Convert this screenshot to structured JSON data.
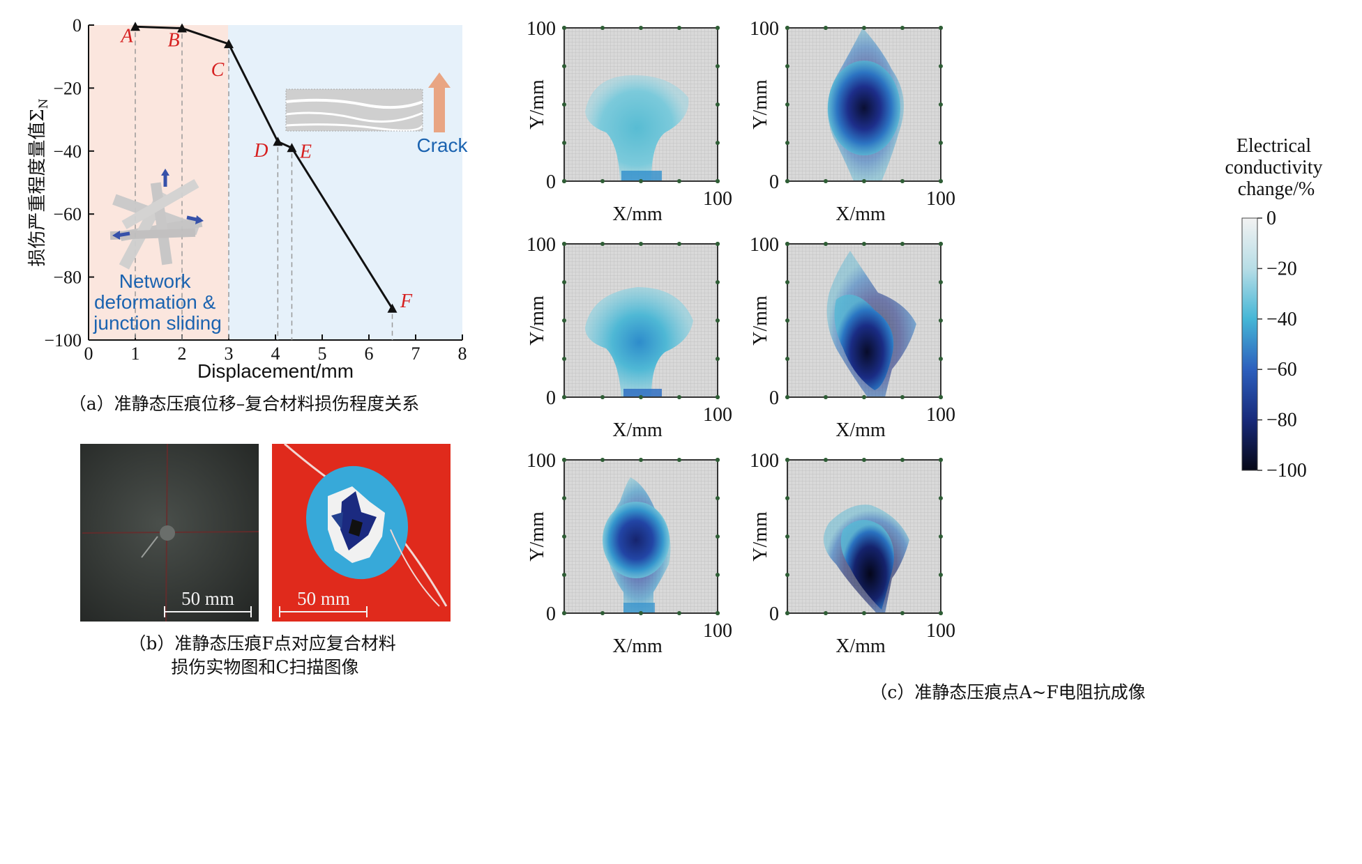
{
  "chart_data": [
    {
      "type": "line",
      "panel_caption": "（a）准静态压痕位移–复合材料损伤程度关系",
      "xlabel": "Displacement/mm",
      "ylabel": "损伤严重程度量值Σ",
      "ylabel_subscript": "N",
      "xlim": [
        0,
        8
      ],
      "ylim": [
        -100,
        0
      ],
      "x_ticks": [
        "0",
        "1",
        "2",
        "3",
        "4",
        "5",
        "6",
        "7",
        "8"
      ],
      "y_ticks": [
        "0",
        "−20",
        "−40",
        "−60",
        "−80",
        "−100"
      ],
      "grid": false,
      "points": [
        {
          "label": "A",
          "x": 1.0,
          "y": -0.5
        },
        {
          "label": "B",
          "x": 2.0,
          "y": -1.0
        },
        {
          "label": "C",
          "x": 3.0,
          "y": -6.0
        },
        {
          "label": "D",
          "x": 4.05,
          "y": -37.0
        },
        {
          "label": "E",
          "x": 4.35,
          "y": -39.0
        },
        {
          "label": "F",
          "x": 6.5,
          "y": -90.0
        }
      ],
      "regions": [
        {
          "from": 0,
          "to": 3,
          "color": "#fbe6de",
          "label_lines": [
            "Network",
            "deformation &",
            "junction sliding"
          ]
        },
        {
          "from": 3,
          "to": 8,
          "color": "#e6f1fa",
          "label_lines": [
            "Crack"
          ]
        }
      ]
    },
    {
      "type": "heatmap",
      "panel_caption": "（c）准静态压痕点A~F电阻抗成像",
      "xlabel": "X/mm",
      "ylabel": "Y/mm",
      "xlim": [
        0,
        100
      ],
      "ylim": [
        0,
        100
      ],
      "axis_ticks": [
        "0",
        "100"
      ],
      "colorbar": {
        "title_lines": [
          "Electrical",
          "conductivity",
          "change/%"
        ],
        "range": [
          -100,
          0
        ],
        "ticks": [
          "0",
          "−20",
          "−40",
          "−60",
          "−80",
          "−100"
        ]
      },
      "maps": [
        {
          "id": "A",
          "center": [
            50,
            55
          ],
          "min_value": -35
        },
        {
          "id": "B",
          "center": [
            50,
            50
          ],
          "min_value": -95
        },
        {
          "id": "C",
          "center": [
            50,
            50
          ],
          "min_value": -45
        },
        {
          "id": "D",
          "center": [
            55,
            42
          ],
          "min_value": -95
        },
        {
          "id": "E",
          "center": [
            50,
            50
          ],
          "min_value": -70
        },
        {
          "id": "F",
          "center": [
            55,
            42
          ],
          "min_value": -100
        }
      ]
    }
  ],
  "photos": {
    "caption_lines": [
      "（b）准静态压痕F点对应复合材料",
      "损伤实物图和C扫描图像"
    ],
    "scale_bar_left": "50 mm",
    "scale_bar_right": "50 mm"
  },
  "colors": {
    "accent_red": "#d62020",
    "accent_blue": "#1b63b0",
    "scan_red": "#e02a1c",
    "scan_cyan": "#37a9d9"
  }
}
